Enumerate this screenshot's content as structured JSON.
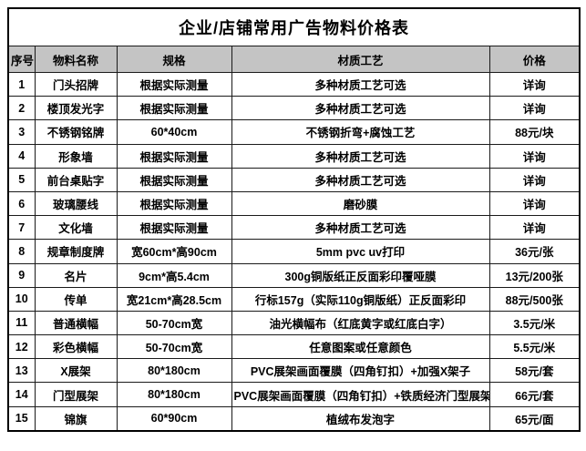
{
  "title": "企业/店铺常用广告物料价格表",
  "table": {
    "headers": [
      "序号",
      "物料名称",
      "规格",
      "材质工艺",
      "价格"
    ],
    "rows": [
      [
        "1",
        "门头招牌",
        "根据实际测量",
        "多种材质工艺可选",
        "详询"
      ],
      [
        "2",
        "楼顶发光字",
        "根据实际测量",
        "多种材质工艺可选",
        "详询"
      ],
      [
        "3",
        "不锈钢铭牌",
        "60*40cm",
        "不锈钢折弯+腐蚀工艺",
        "88元/块"
      ],
      [
        "4",
        "形象墙",
        "根据实际测量",
        "多种材质工艺可选",
        "详询"
      ],
      [
        "5",
        "前台桌贴字",
        "根据实际测量",
        "多种材质工艺可选",
        "详询"
      ],
      [
        "6",
        "玻璃腰线",
        "根据实际测量",
        "磨砂膜",
        "详询"
      ],
      [
        "7",
        "文化墙",
        "根据实际测量",
        "多种材质工艺可选",
        "详询"
      ],
      [
        "8",
        "规章制度牌",
        "宽60cm*高90cm",
        "5mm pvc uv打印",
        "36元/张"
      ],
      [
        "9",
        "名片",
        "9cm*高5.4cm",
        "300g铜版纸正反面彩印覆哑膜",
        "13元/200张"
      ],
      [
        "10",
        "传单",
        "宽21cm*高28.5cm",
        "行标157g（实际110g铜版纸）正反面彩印",
        "88元/500张"
      ],
      [
        "11",
        "普通横幅",
        "50-70cm宽",
        "油光横幅布（红底黄字或红底白字）",
        "3.5元/米"
      ],
      [
        "12",
        "彩色横幅",
        "50-70cm宽",
        "任意图案或任意颜色",
        "5.5元/米"
      ],
      [
        "13",
        "X展架",
        "80*180cm",
        "PVC展架画面覆膜（四角钉扣）+加强X架子",
        "58元/套"
      ],
      [
        "14",
        "门型展架",
        "80*180cm",
        "PVC展架画面覆膜（四角钉扣）+铁质经济门型展架",
        "66元/套"
      ],
      [
        "15",
        "锦旗",
        "60*90cm",
        "植绒布发泡字",
        "65元/面"
      ]
    ]
  },
  "colors": {
    "header_bg": "#c4c4c4",
    "border": "#000000",
    "text": "#000000",
    "background": "#ffffff"
  }
}
